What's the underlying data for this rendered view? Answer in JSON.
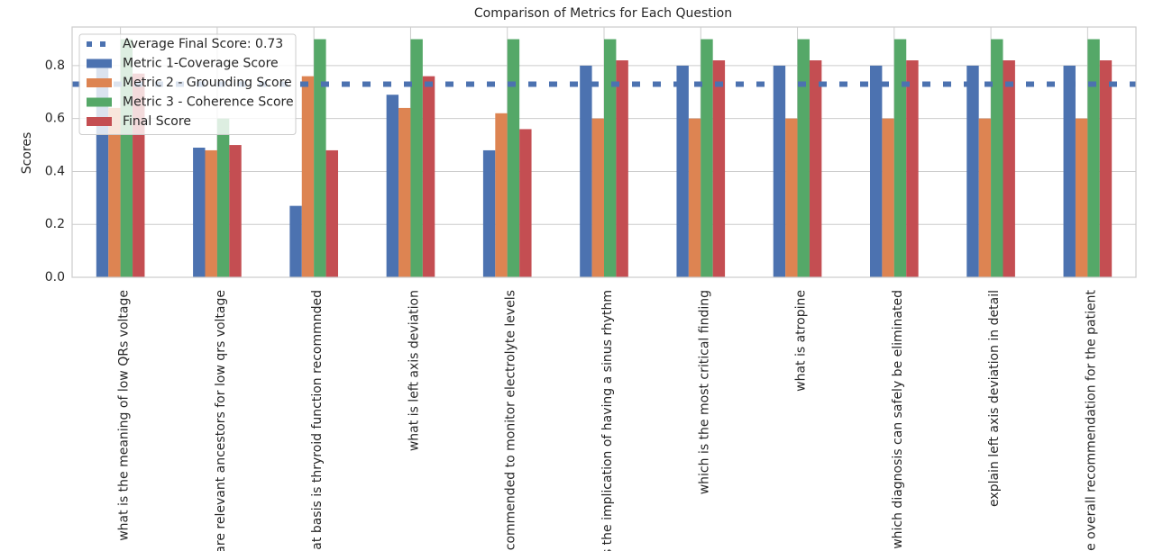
{
  "chart_data": {
    "type": "bar",
    "title": "Comparison of Metrics for Each Question",
    "y_label": "Scores",
    "categories": [
      "what is the meaning of low QRs voltage",
      "t are relevant ancestors for low qrs voltage",
      "what basis is thryroid function recommnded",
      "what is left axis deviation",
      "recommended to monitor electrolyte levels",
      "t is the implication of having a sinus rhythm",
      "which is the most critical finding",
      "what is atropine",
      "which diagnosis can safely be eliminated",
      "explain left axis deviation in detail",
      "the overall recommendation for the patient"
    ],
    "series": [
      {
        "name": "Metric 1-Coverage Score",
        "color": "#4c72b0",
        "values": [
          0.79,
          0.49,
          0.27,
          0.69,
          0.48,
          0.8,
          0.8,
          0.8,
          0.8,
          0.8,
          0.8
        ]
      },
      {
        "name": "Metric 2 - Grounding Score",
        "color": "#dd8452",
        "values": [
          0.64,
          0.48,
          0.76,
          0.64,
          0.62,
          0.6,
          0.6,
          0.6,
          0.6,
          0.6,
          0.6
        ]
      },
      {
        "name": "Metric 3 - Coherence Score",
        "color": "#55a868",
        "values": [
          0.9,
          0.6,
          0.9,
          0.9,
          0.9,
          0.9,
          0.9,
          0.9,
          0.9,
          0.9,
          0.9
        ]
      },
      {
        "name": "Final Score",
        "color": "#c44e52",
        "values": [
          0.77,
          0.5,
          0.48,
          0.76,
          0.56,
          0.82,
          0.82,
          0.82,
          0.82,
          0.82,
          0.82
        ]
      }
    ],
    "average_line": {
      "label": "Average Final Score: 0.73",
      "value": 0.73,
      "color": "#4c72b0"
    },
    "ylim": [
      0,
      0.946
    ],
    "yticks": [
      {
        "value": 0,
        "label": "0.0"
      },
      0.2,
      0.4,
      0.6,
      0.8
    ],
    "grid": true,
    "legend": "upper left"
  }
}
